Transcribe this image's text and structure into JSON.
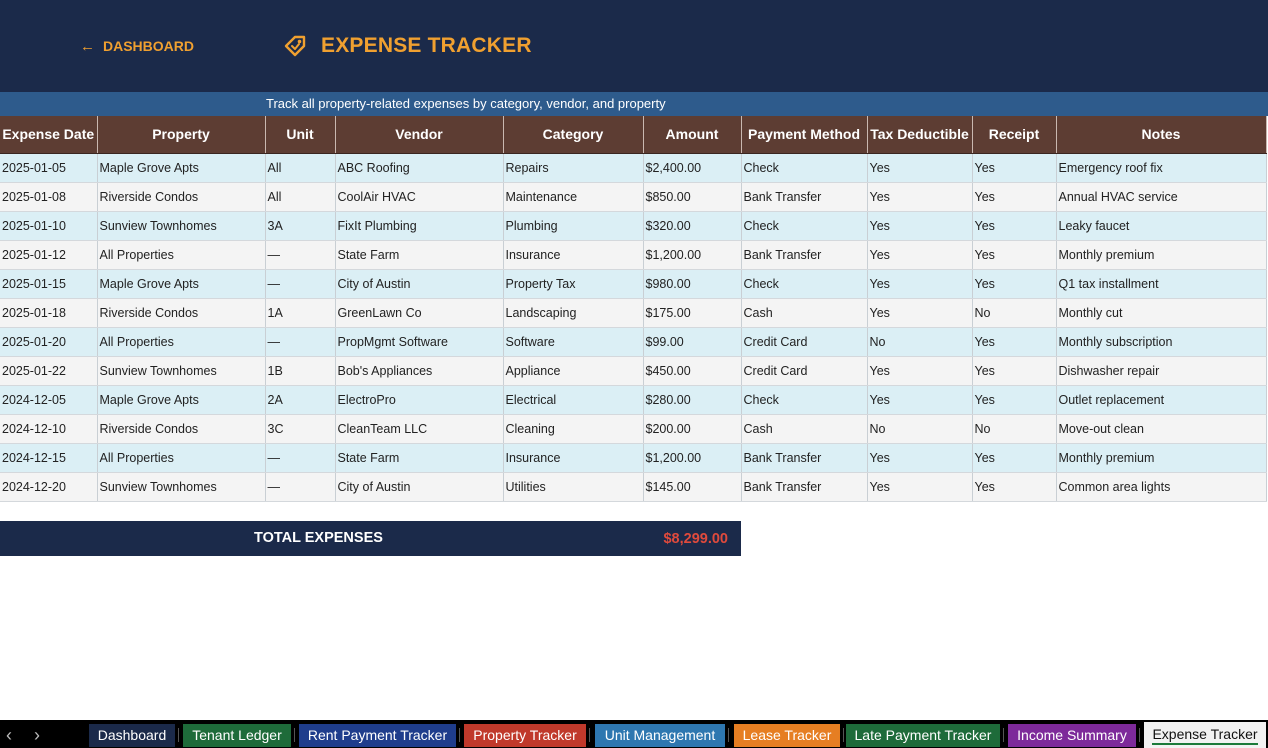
{
  "header": {
    "back_label": "DASHBOARD",
    "title": "EXPENSE TRACKER",
    "title_icon": "tag-icon",
    "subtitle": "Track all property-related expenses by category, vendor, and property"
  },
  "colors": {
    "header_bg": "#1b2a4a",
    "accent": "#f0a030",
    "subtitle_bg": "#2e5b8c",
    "table_header_bg": "#5d3d33",
    "row_alt": "#dbeff5",
    "row": "#f4f4f4",
    "total_value": "#e04a3c"
  },
  "table": {
    "columns": [
      "Expense Date",
      "Property",
      "Unit",
      "Vendor",
      "Category",
      "Amount",
      "Payment Method",
      "Tax Deductible",
      "Receipt",
      "Notes"
    ],
    "rows": [
      [
        "2025-01-05",
        "Maple Grove Apts",
        "All",
        "ABC Roofing",
        "Repairs",
        "$2,400.00",
        "Check",
        "Yes",
        "Yes",
        "Emergency roof fix"
      ],
      [
        "2025-01-08",
        "Riverside Condos",
        "All",
        "CoolAir HVAC",
        "Maintenance",
        "$850.00",
        "Bank Transfer",
        "Yes",
        "Yes",
        "Annual HVAC service"
      ],
      [
        "2025-01-10",
        "Sunview Townhomes",
        "3A",
        "FixIt Plumbing",
        "Plumbing",
        "$320.00",
        "Check",
        "Yes",
        "Yes",
        "Leaky faucet"
      ],
      [
        "2025-01-12",
        "All Properties",
        "—",
        "State Farm",
        "Insurance",
        "$1,200.00",
        "Bank Transfer",
        "Yes",
        "Yes",
        "Monthly premium"
      ],
      [
        "2025-01-15",
        "Maple Grove Apts",
        "—",
        "City of Austin",
        "Property Tax",
        "$980.00",
        "Check",
        "Yes",
        "Yes",
        "Q1 tax installment"
      ],
      [
        "2025-01-18",
        "Riverside Condos",
        "1A",
        "GreenLawn Co",
        "Landscaping",
        "$175.00",
        "Cash",
        "Yes",
        "No",
        "Monthly cut"
      ],
      [
        "2025-01-20",
        "All Properties",
        "—",
        "PropMgmt Software",
        "Software",
        "$99.00",
        "Credit Card",
        "No",
        "Yes",
        "Monthly subscription"
      ],
      [
        "2025-01-22",
        "Sunview Townhomes",
        "1B",
        "Bob's Appliances",
        "Appliance",
        "$450.00",
        "Credit Card",
        "Yes",
        "Yes",
        "Dishwasher repair"
      ],
      [
        "2024-12-05",
        "Maple Grove Apts",
        "2A",
        "ElectroPro",
        "Electrical",
        "$280.00",
        "Check",
        "Yes",
        "Yes",
        "Outlet replacement"
      ],
      [
        "2024-12-10",
        "Riverside Condos",
        "3C",
        "CleanTeam LLC",
        "Cleaning",
        "$200.00",
        "Cash",
        "No",
        "No",
        "Move-out clean"
      ],
      [
        "2024-12-15",
        "All Properties",
        "—",
        "State Farm",
        "Insurance",
        "$1,200.00",
        "Bank Transfer",
        "Yes",
        "Yes",
        "Monthly premium"
      ],
      [
        "2024-12-20",
        "Sunview Townhomes",
        "—",
        "City of Austin",
        "Utilities",
        "$145.00",
        "Bank Transfer",
        "Yes",
        "Yes",
        "Common area lights"
      ]
    ]
  },
  "total": {
    "label": "TOTAL EXPENSES",
    "value": "$8,299.00"
  },
  "sheet_tabs": [
    {
      "label": "Dashboard",
      "color": "#1b2a4a",
      "active": false
    },
    {
      "label": "Tenant Ledger",
      "color": "#1e6b3a",
      "active": false
    },
    {
      "label": "Rent Payment Tracker",
      "color": "#1f3d8c",
      "active": false
    },
    {
      "label": "Property Tracker",
      "color": "#c0392b",
      "active": false
    },
    {
      "label": "Unit Management",
      "color": "#2e77b0",
      "active": false
    },
    {
      "label": "Lease Tracker",
      "color": "#e67e22",
      "active": false
    },
    {
      "label": "Late Payment Tracker",
      "color": "#1e6b3a",
      "active": false
    },
    {
      "label": "Income Summary",
      "color": "#7d2a9a",
      "active": false
    },
    {
      "label": "Expense Tracker",
      "color": "#f2f2f2",
      "active": true
    }
  ]
}
